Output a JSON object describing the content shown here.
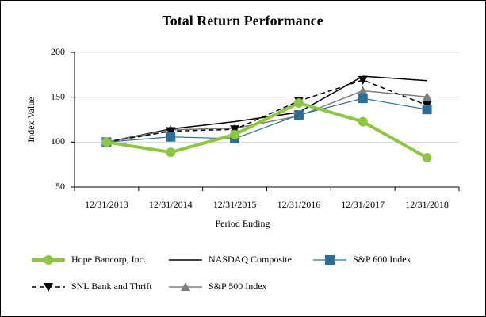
{
  "chart_data": {
    "type": "line",
    "title": "Total Return Performance",
    "x_label": "Period Ending",
    "y_label": "Index Value",
    "categories": [
      "12/31/2013",
      "12/31/2014",
      "12/31/2015",
      "12/31/2016",
      "12/31/2017",
      "12/31/2018"
    ],
    "ylim": [
      50,
      200
    ],
    "yticks": [
      50,
      100,
      150,
      200
    ],
    "grid": true,
    "series": [
      {
        "name": "Hope Bancorp, Inc.",
        "color": "#8dc63f",
        "width": 4,
        "marker": "circle",
        "dashed": false,
        "values": [
          100,
          88.7,
          108.5,
          143.5,
          122.7,
          82.6
        ]
      },
      {
        "name": "NASDAQ Composite",
        "color": "#000000",
        "width": 1.5,
        "marker": "none",
        "dashed": false,
        "values": [
          100,
          114.6,
          122.8,
          133.2,
          173.4,
          168.5
        ]
      },
      {
        "name": "S&P 600 Index",
        "color": "#2b6f98",
        "width": 1.2,
        "marker": "square",
        "dashed": false,
        "values": [
          100,
          105.8,
          103.9,
          130.2,
          148.7,
          136.3
        ]
      },
      {
        "name": "SNL Bank and Thrift",
        "color": "#000000",
        "width": 1.5,
        "marker": "triangle-down",
        "dashed": true,
        "values": [
          100,
          112.2,
          114.2,
          145.7,
          169.2,
          141.0
        ]
      },
      {
        "name": "S&P 500 Index",
        "color": "#7f7f7f",
        "width": 1.5,
        "marker": "triangle-up",
        "dashed": false,
        "values": [
          100,
          113.7,
          115.3,
          129.1,
          157.2,
          150.4
        ]
      }
    ]
  }
}
